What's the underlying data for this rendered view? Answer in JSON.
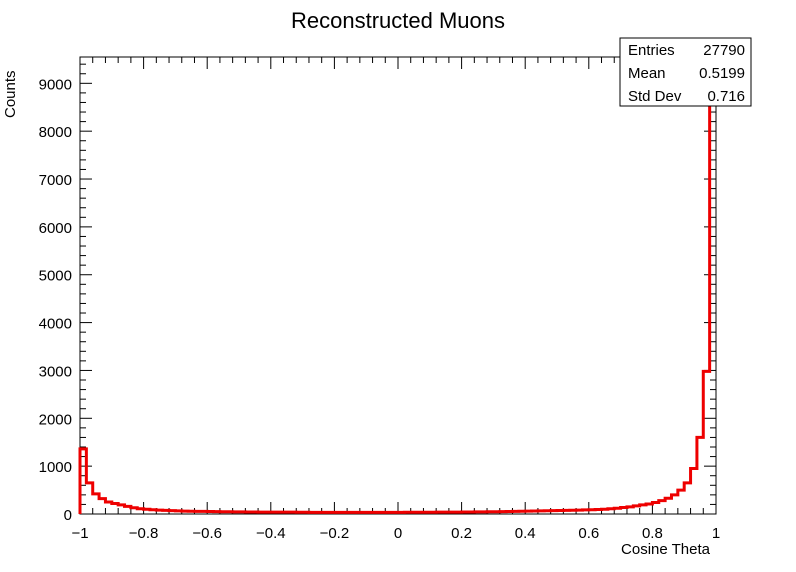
{
  "chart_data": {
    "type": "histogram",
    "title": "Reconstructed Muons",
    "xlabel": "Cosine Theta",
    "ylabel": "Counts",
    "xlim": [
      -1,
      1
    ],
    "ylim": [
      0,
      9550
    ],
    "x_tick_labels": [
      "−1",
      "−0.8",
      "−0.6",
      "−0.4",
      "−0.2",
      "0",
      "0.2",
      "0.4",
      "0.6",
      "0.8",
      "1"
    ],
    "y_tick_labels": [
      "0",
      "1000",
      "2000",
      "3000",
      "4000",
      "5000",
      "6000",
      "7000",
      "8000",
      "9000"
    ],
    "series": [
      {
        "color": "#ee0000",
        "bin_edges_start": -1,
        "bin_width": 0.02,
        "values": [
          1360,
          650,
          420,
          320,
          250,
          220,
          190,
          160,
          130,
          110,
          100,
          90,
          80,
          75,
          70,
          65,
          60,
          58,
          55,
          55,
          52,
          50,
          48,
          48,
          45,
          45,
          42,
          42,
          40,
          40,
          40,
          38,
          38,
          38,
          36,
          36,
          35,
          35,
          35,
          35,
          35,
          35,
          35,
          35,
          35,
          35,
          35,
          35,
          35,
          35,
          35,
          36,
          36,
          36,
          36,
          37,
          38,
          38,
          40,
          40,
          42,
          42,
          44,
          45,
          46,
          48,
          50,
          52,
          55,
          58,
          60,
          62,
          65,
          68,
          70,
          72,
          75,
          78,
          82,
          85,
          90,
          95,
          100,
          110,
          120,
          135,
          150,
          170,
          190,
          210,
          240,
          280,
          330,
          400,
          500,
          650,
          950,
          1600,
          2980,
          9500
        ]
      }
    ]
  },
  "stats_box": {
    "rows": [
      {
        "label": "Entries",
        "value": "27790"
      },
      {
        "label": "Mean",
        "value": "0.5199"
      },
      {
        "label": "Std Dev",
        "value": "0.716"
      }
    ]
  }
}
